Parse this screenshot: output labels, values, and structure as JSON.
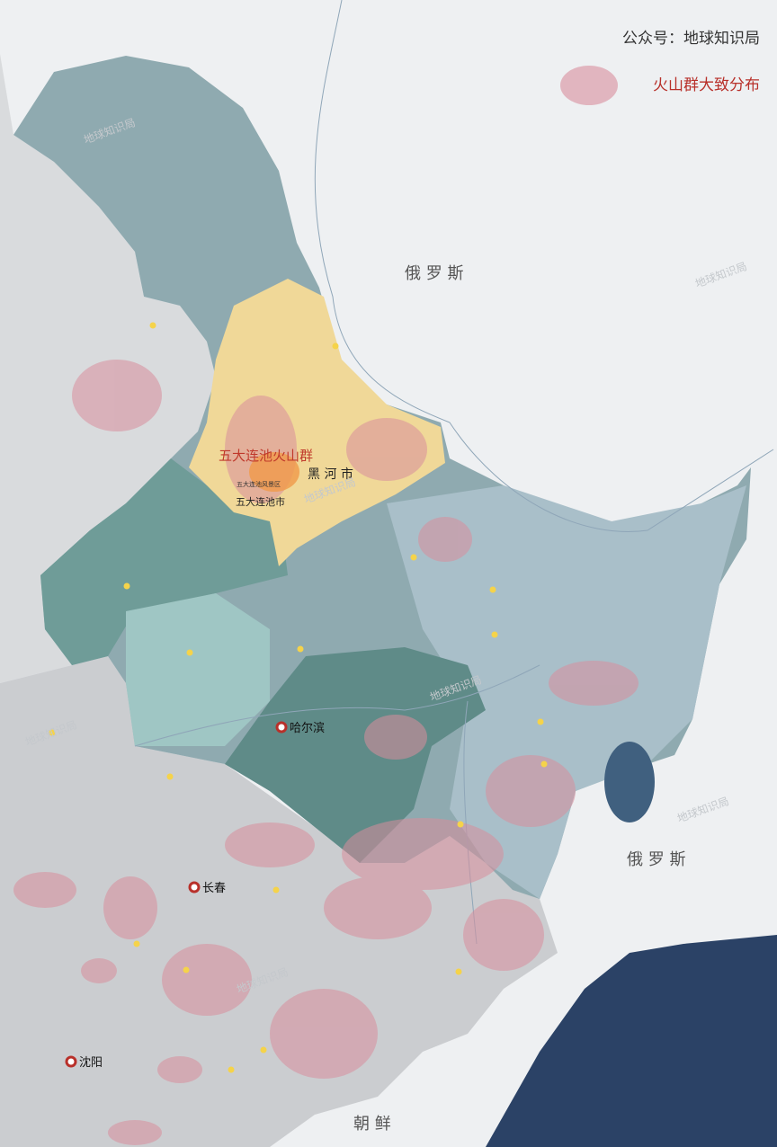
{
  "header": {
    "account": "公众号：地球知识局"
  },
  "legend": {
    "label": "火山群大致分布"
  },
  "labels": {
    "russia_north": "俄 罗 斯",
    "russia_east": "俄 罗 斯",
    "north_korea": "朝 鲜",
    "volcano_group": "五大连池火山群",
    "heihe": "黑 河 市",
    "wudalianchi_city": "五大连池市",
    "scenic_area": "五大连池风景区"
  },
  "cities": [
    {
      "name": "哈尔滨"
    },
    {
      "name": "长春"
    },
    {
      "name": "沈阳"
    }
  ],
  "watermark": "地球知识局"
}
